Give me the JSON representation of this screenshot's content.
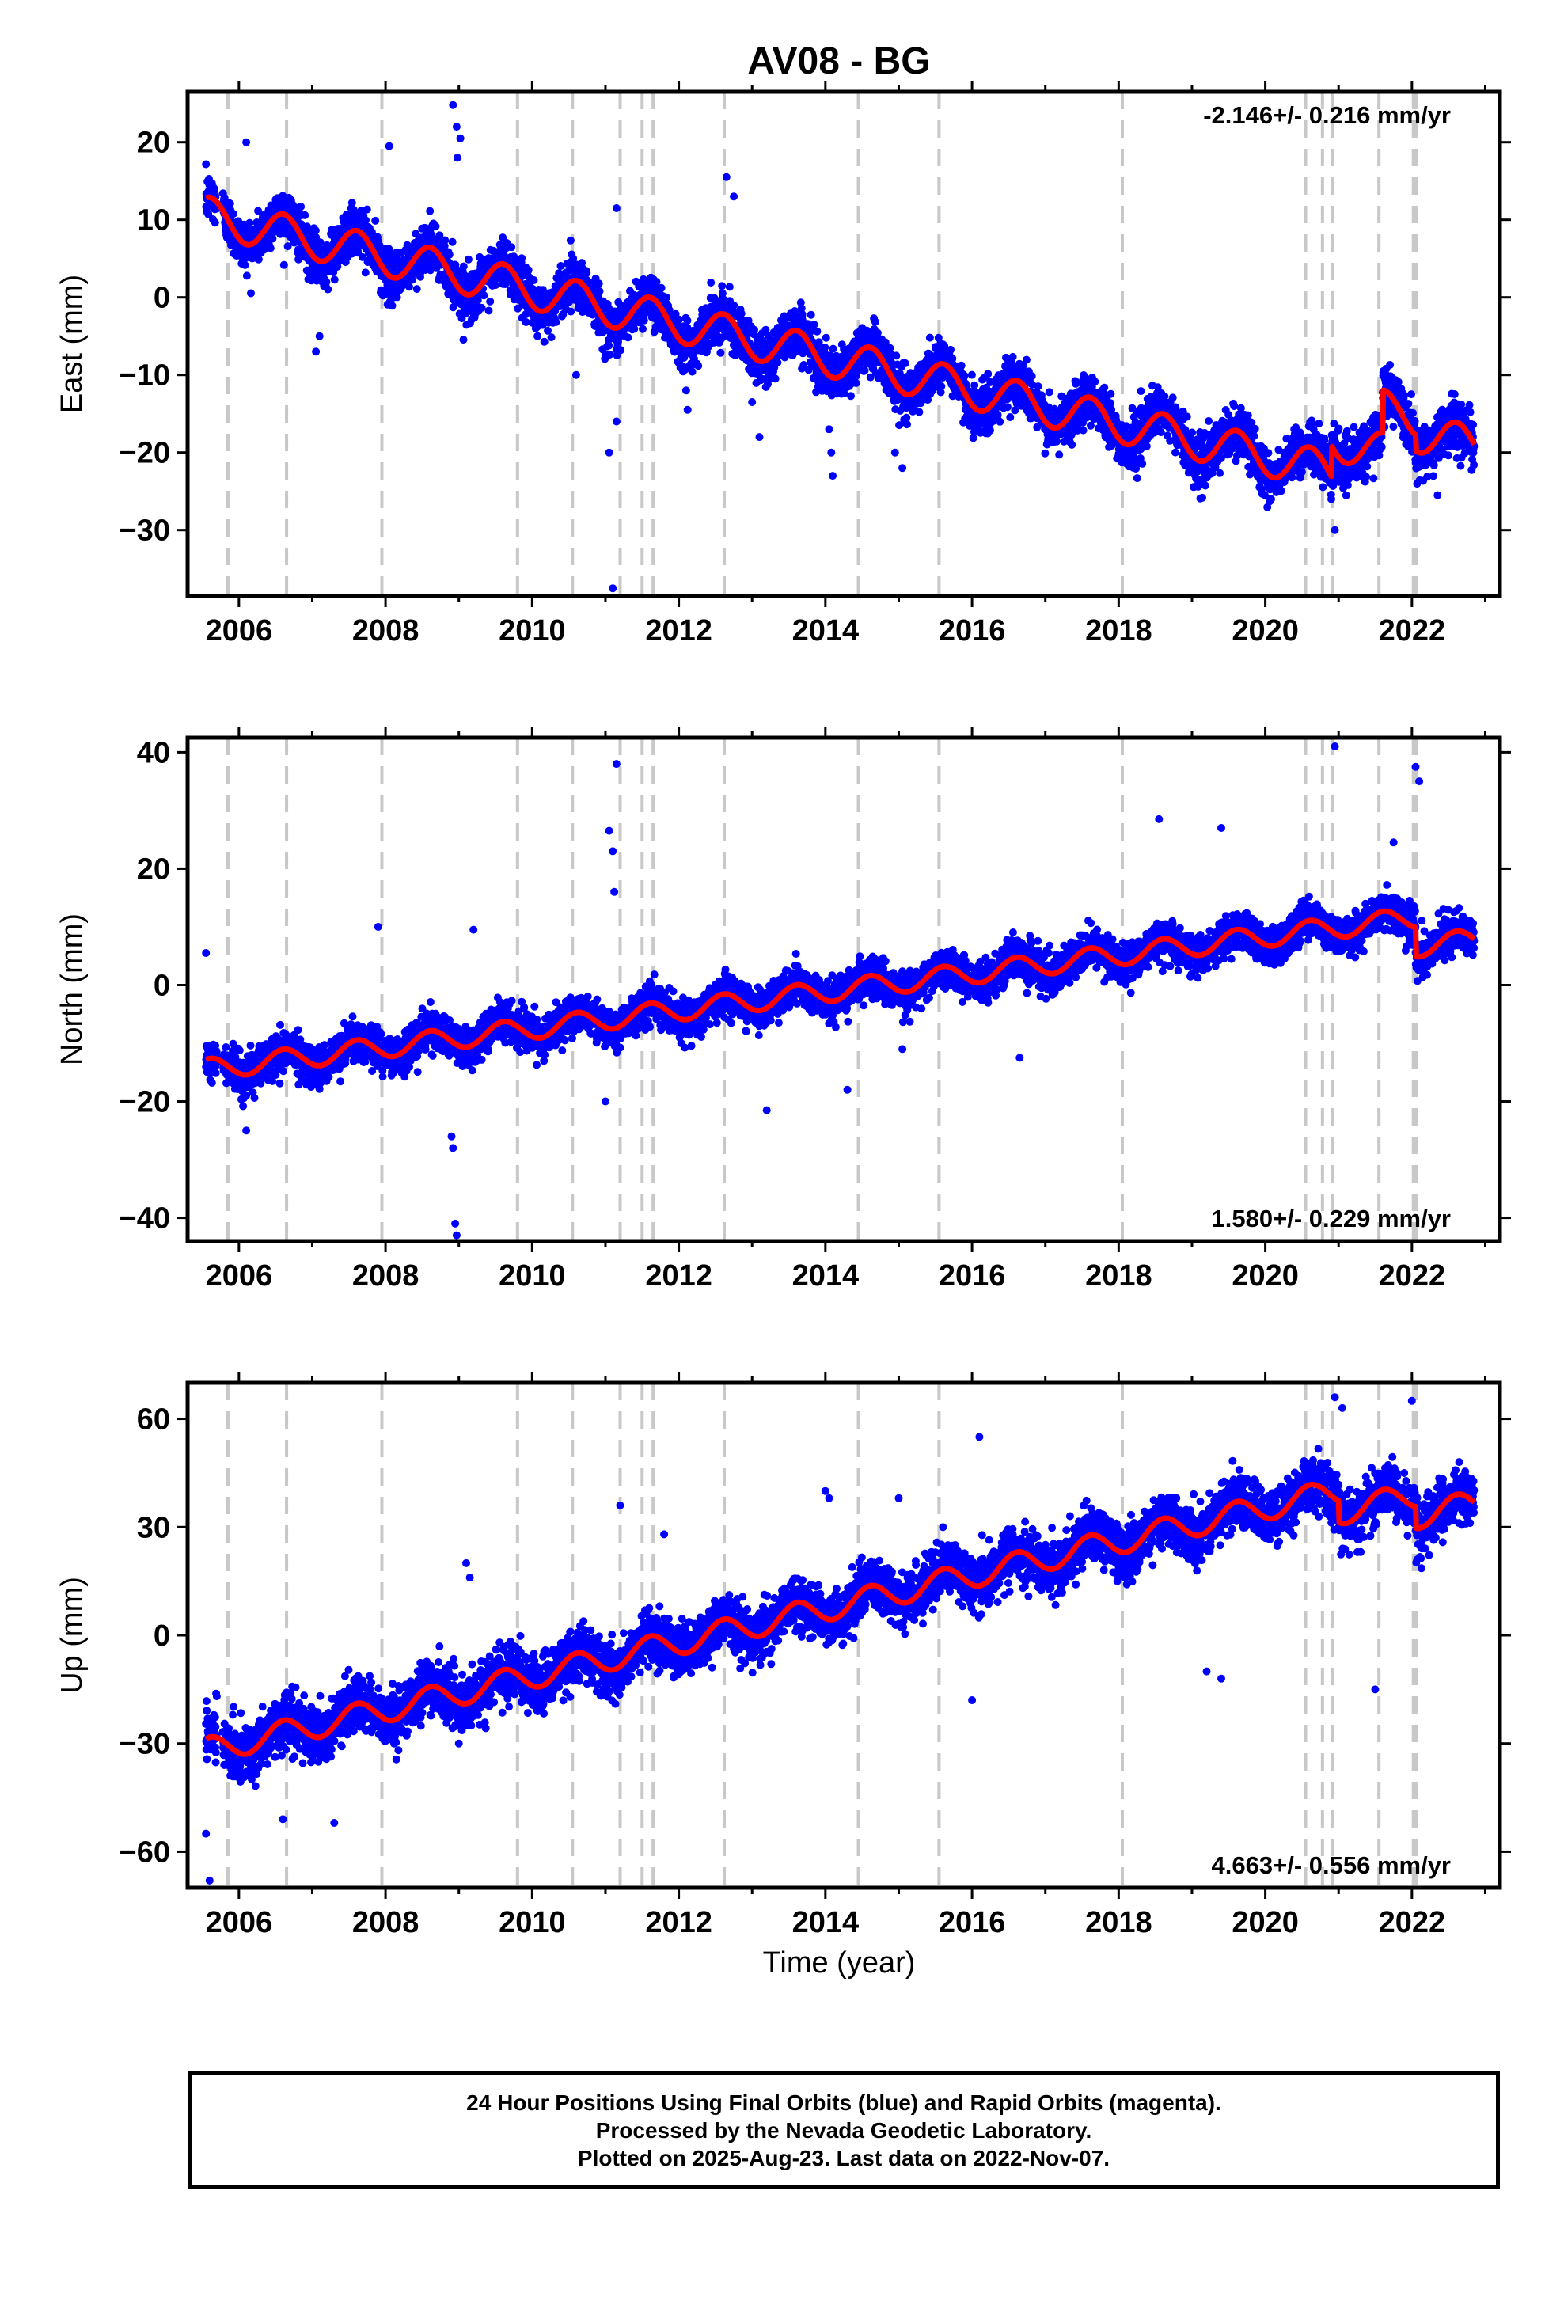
{
  "page_title": "AV08 - BG",
  "x_axis_title": "Time (year)",
  "footer": {
    "lines": [
      "24 Hour Positions Using Final Orbits (blue) and Rapid Orbits (magenta).",
      "Processed by the Nevada Geodetic Laboratory.",
      "Plotted on 2025-Aug-23. Last data on 2022-Nov-07."
    ]
  },
  "colors": {
    "points": "#0000ff",
    "model": "#ff0000",
    "event_lines": "#c8c8c8",
    "axis": "#000000"
  },
  "chart_data": [
    {
      "type": "scatter",
      "component": "east",
      "ylabel": "East (mm)",
      "rate_label": "-2.146+/- 0.216 mm/yr",
      "rate_label_position": "top-right",
      "xlim": [
        2005.3,
        2023.2
      ],
      "ylim": [
        -38.5,
        26.5
      ],
      "x_ticks": [
        2006,
        2008,
        2010,
        2012,
        2014,
        2016,
        2018,
        2020,
        2022
      ],
      "y_ticks": [
        20,
        10,
        0,
        -10,
        -20,
        -30
      ],
      "start_value": 10.5,
      "rate": -2.146,
      "seasonal_amplitude": 2.5,
      "steps": [
        [
          2020.9,
          4.0
        ],
        [
          2021.6,
          5.5
        ],
        [
          2022.05,
          -2.0
        ]
      ],
      "noise": 2.6,
      "outliers": [
        [
          2008.92,
          24.8
        ],
        [
          2008.97,
          22.0
        ],
        [
          2009.02,
          20.5
        ],
        [
          2008.98,
          18.0
        ],
        [
          2011.05,
          -20.0
        ],
        [
          2011.15,
          -16.0
        ],
        [
          2011.1,
          -37.5
        ],
        [
          2010.6,
          -10.0
        ],
        [
          2012.1,
          -12.0
        ],
        [
          2012.12,
          -14.5
        ],
        [
          2013.1,
          -18.0
        ],
        [
          2013.0,
          -13.5
        ],
        [
          2014.05,
          -17.0
        ],
        [
          2014.08,
          -20.0
        ],
        [
          2014.1,
          -23.0
        ],
        [
          2014.95,
          -20.0
        ],
        [
          2015.05,
          -22.0
        ],
        [
          2016.2,
          -13.5
        ],
        [
          2018.05,
          -19.5
        ],
        [
          2020.9,
          -26.0
        ],
        [
          2020.95,
          -30.0
        ],
        [
          2021.1,
          -22.0
        ],
        [
          2022.35,
          -25.5
        ],
        [
          2020.5,
          -22.5
        ],
        [
          2012.65,
          15.5
        ],
        [
          2012.75,
          13.0
        ],
        [
          2006.1,
          20.0
        ],
        [
          2007.05,
          -7.0
        ],
        [
          2007.1,
          -5.0
        ],
        [
          2008.05,
          19.5
        ],
        [
          2011.15,
          11.5
        ]
      ],
      "event_lines": [
        2005.85,
        2006.65,
        2007.95,
        2009.8,
        2010.55,
        2011.2,
        2011.5,
        2011.65,
        2012.62,
        2014.45,
        2015.55,
        2018.05,
        2020.55,
        2020.78,
        2020.92,
        2021.55,
        2022.02,
        2022.06
      ]
    },
    {
      "type": "scatter",
      "component": "north",
      "ylabel": "North (mm)",
      "rate_label": "1.580+/- 0.229 mm/yr",
      "rate_label_position": "bottom-right",
      "xlim": [
        2005.3,
        2023.2
      ],
      "ylim": [
        -44,
        42.5
      ],
      "x_ticks": [
        2006,
        2008,
        2010,
        2012,
        2014,
        2016,
        2018,
        2020,
        2022
      ],
      "y_ticks": [
        40,
        20,
        0,
        -20,
        -40
      ],
      "start_value": -14.5,
      "rate": 1.58,
      "seasonal_amplitude": 1.8,
      "steps": [
        [
          2022.05,
          -5.0
        ]
      ],
      "noise": 2.7,
      "outliers": [
        [
          2005.55,
          5.5
        ],
        [
          2008.9,
          -26.0
        ],
        [
          2008.92,
          -28.0
        ],
        [
          2008.95,
          -41.0
        ],
        [
          2008.97,
          -43.0
        ],
        [
          2011.15,
          38.0
        ],
        [
          2011.05,
          26.5
        ],
        [
          2011.1,
          23.0
        ],
        [
          2011.12,
          16.0
        ],
        [
          2011.0,
          -20.0
        ],
        [
          2013.2,
          -21.5
        ],
        [
          2014.3,
          -18.0
        ],
        [
          2015.05,
          -11.0
        ],
        [
          2016.65,
          -12.5
        ],
        [
          2020.95,
          41.0
        ],
        [
          2022.05,
          37.5
        ],
        [
          2022.1,
          35.0
        ],
        [
          2022.2,
          3.5
        ],
        [
          2009.2,
          9.5
        ],
        [
          2007.9,
          10.0
        ],
        [
          2006.1,
          -25.0
        ],
        [
          2018.55,
          28.5
        ],
        [
          2019.4,
          27.0
        ],
        [
          2021.75,
          24.5
        ]
      ],
      "event_lines": [
        2005.85,
        2006.65,
        2007.95,
        2009.8,
        2010.55,
        2011.2,
        2011.5,
        2011.65,
        2012.62,
        2014.45,
        2015.55,
        2018.05,
        2020.55,
        2020.78,
        2020.92,
        2021.55,
        2022.02,
        2022.06
      ]
    },
    {
      "type": "scatter",
      "component": "up",
      "ylabel": "Up (mm)",
      "rate_label": "4.663+/- 0.556 mm/yr",
      "rate_label_position": "bottom-right",
      "xlim": [
        2005.3,
        2023.2
      ],
      "ylim": [
        -70,
        70
      ],
      "x_ticks": [
        2006,
        2008,
        2010,
        2012,
        2014,
        2016,
        2018,
        2020,
        2022
      ],
      "y_ticks": [
        60,
        30,
        0,
        -30,
        -60
      ],
      "start_value": -32.0,
      "rate": 4.663,
      "seasonal_amplitude": 3.5,
      "steps": [
        [
          2021.0,
          -6.0
        ],
        [
          2022.05,
          -6.0
        ]
      ],
      "noise": 6.0,
      "outliers": [
        [
          2005.55,
          -55.0
        ],
        [
          2005.6,
          -68.0
        ],
        [
          2006.6,
          -51.0
        ],
        [
          2007.3,
          -52.0
        ],
        [
          2009.1,
          20.0
        ],
        [
          2009.15,
          16.0
        ],
        [
          2011.2,
          36.0
        ],
        [
          2014.0,
          40.0
        ],
        [
          2014.05,
          38.0
        ],
        [
          2015.0,
          38.0
        ],
        [
          2016.1,
          55.0
        ],
        [
          2016.0,
          -18.0
        ],
        [
          2019.2,
          -10.0
        ],
        [
          2019.4,
          -12.0
        ],
        [
          2020.95,
          66.0
        ],
        [
          2021.05,
          63.0
        ],
        [
          2022.0,
          65.0
        ],
        [
          2021.5,
          -15.0
        ],
        [
          2009.0,
          -30.0
        ],
        [
          2011.8,
          28.0
        ]
      ],
      "event_lines": [
        2005.85,
        2006.65,
        2007.95,
        2009.8,
        2010.55,
        2011.2,
        2011.5,
        2011.65,
        2012.62,
        2014.45,
        2015.55,
        2018.05,
        2020.55,
        2020.78,
        2020.92,
        2021.55,
        2022.02,
        2022.06
      ]
    }
  ]
}
